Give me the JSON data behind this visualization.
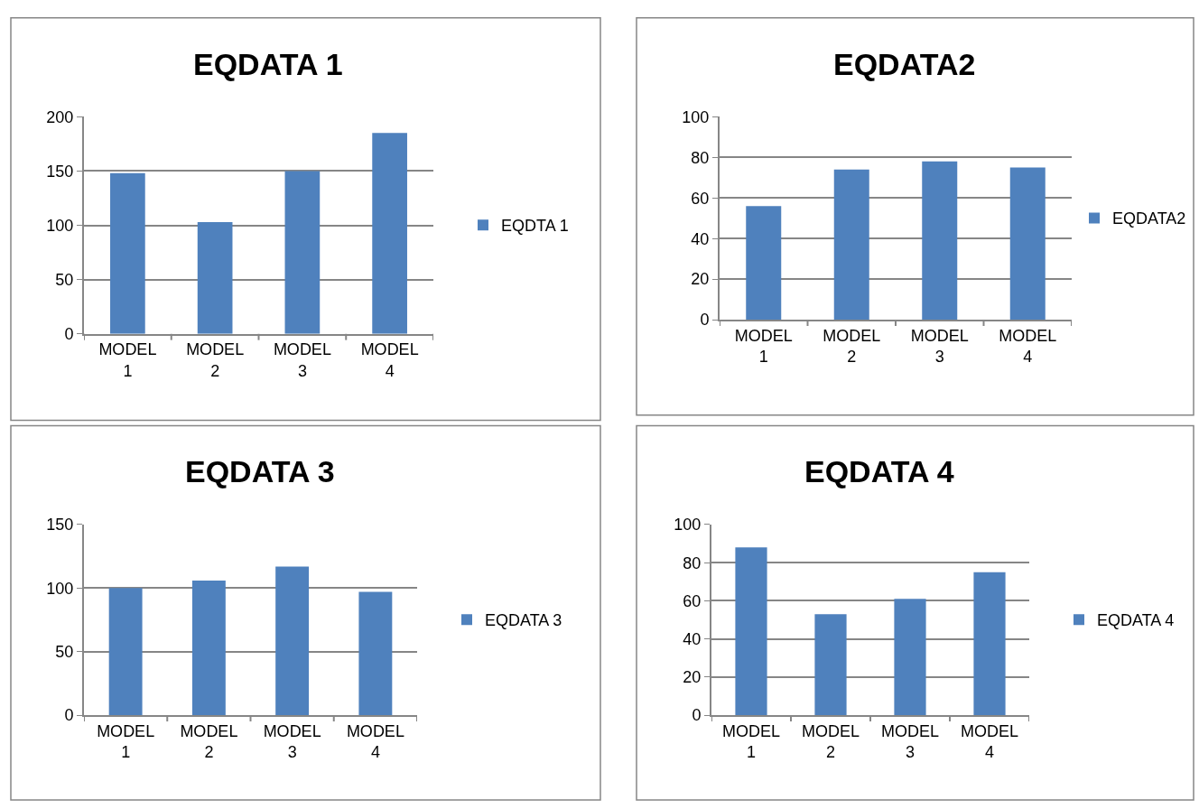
{
  "chart_data": [
    {
      "type": "bar",
      "title": "EQDATA 1",
      "categories": [
        "MODEL 1",
        "MODEL 2",
        "MODEL 3",
        "MODEL 4"
      ],
      "series": [
        {
          "name": "EQDTA 1",
          "color": "#4f81bd",
          "values": [
            148,
            103,
            150,
            185
          ]
        }
      ],
      "ylim": [
        0,
        200
      ],
      "yticks": [
        0,
        50,
        100,
        150,
        200
      ],
      "grid": "y",
      "legend": "right"
    },
    {
      "type": "bar",
      "title": "EQDATA2",
      "categories": [
        "MODEL 1",
        "MODEL 2",
        "MODEL 3",
        "MODEL 4"
      ],
      "series": [
        {
          "name": "EQDATA2",
          "color": "#4f81bd",
          "values": [
            56,
            74,
            78,
            75
          ]
        }
      ],
      "ylim": [
        0,
        100
      ],
      "yticks": [
        0,
        20,
        40,
        60,
        80,
        100
      ],
      "grid": "y",
      "legend": "right"
    },
    {
      "type": "bar",
      "title": "EQDATA 3",
      "categories": [
        "MODEL 1",
        "MODEL 2",
        "MODEL 3",
        "MODEL 4"
      ],
      "series": [
        {
          "name": "EQDATA 3",
          "color": "#4f81bd",
          "values": [
            100,
            106,
            117,
            97
          ]
        }
      ],
      "ylim": [
        0,
        150
      ],
      "yticks": [
        0,
        50,
        100,
        150
      ],
      "grid": "y",
      "legend": "right"
    },
    {
      "type": "bar",
      "title": "EQDATA 4",
      "categories": [
        "MODEL 1",
        "MODEL 2",
        "MODEL 3",
        "MODEL 4"
      ],
      "series": [
        {
          "name": "EQDATA 4",
          "color": "#4f81bd",
          "values": [
            88,
            53,
            61,
            75
          ]
        }
      ],
      "ylim": [
        0,
        100
      ],
      "yticks": [
        0,
        20,
        40,
        60,
        80,
        100
      ],
      "grid": "y",
      "legend": "right"
    }
  ]
}
